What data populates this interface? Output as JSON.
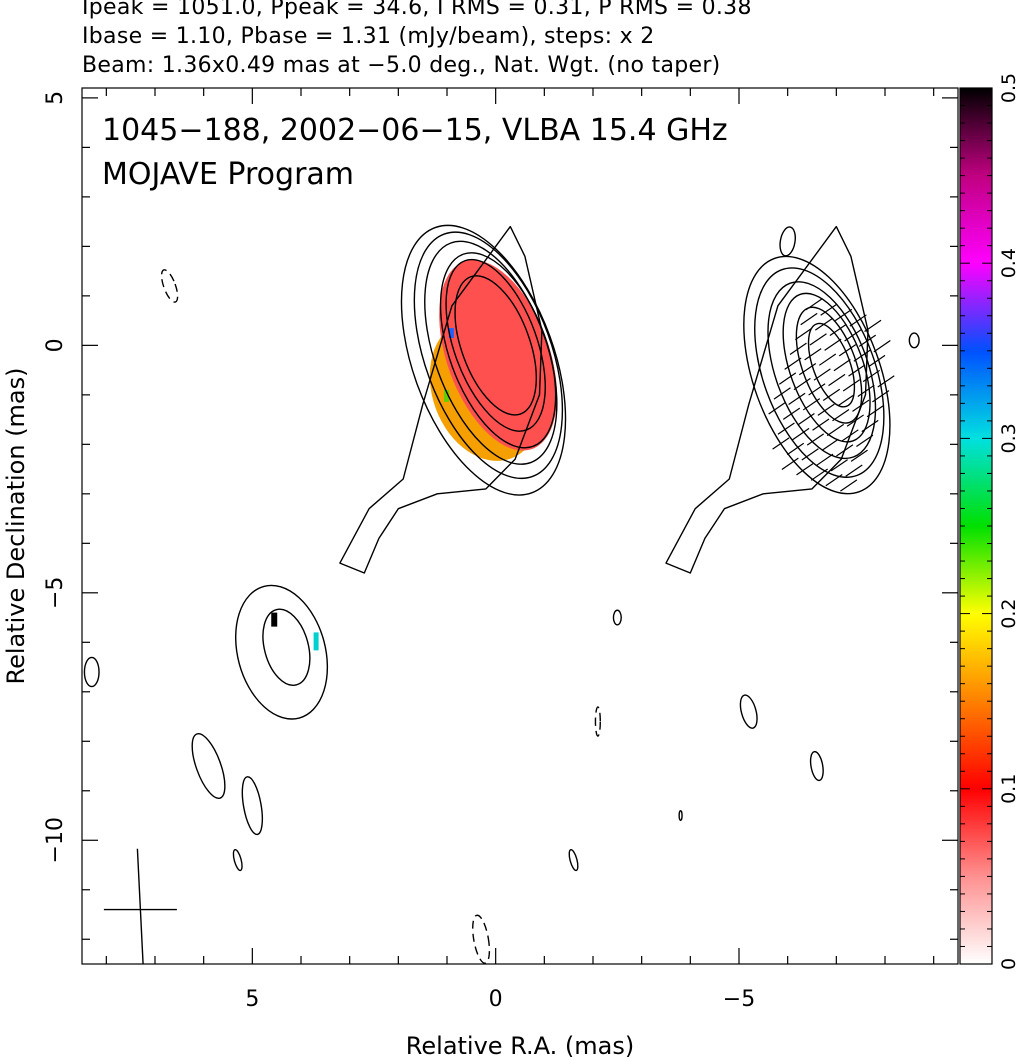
{
  "header": {
    "line1": "Ipeak = 1051.0, Ppeak = 34.6, I RMS = 0.31, P RMS = 0.38",
    "line2": "Ibase = 1.10, Pbase = 1.31 (mJy/beam), steps: x 2",
    "line3": "Beam: 1.36x0.49 mas at −5.0 deg., Nat. Wgt. (no taper)"
  },
  "chart_data": {
    "type": "heatmap",
    "title_line1": "1045−188, 2002−06−15, VLBA 15.4 GHz",
    "title_line2": "MOJAVE Program",
    "xlabel": "Relative R.A. (mas)",
    "ylabel": "Relative Declination (mas)",
    "xlim": [
      8.5,
      -9.5
    ],
    "ylim": [
      -12.5,
      5.2
    ],
    "x_ticks": [
      {
        "value": 5,
        "label": "5"
      },
      {
        "value": 0,
        "label": "0"
      },
      {
        "value": -5,
        "label": "−5"
      }
    ],
    "y_ticks": [
      {
        "value": 5,
        "label": "5"
      },
      {
        "value": 0,
        "label": "0"
      },
      {
        "value": -5,
        "label": "−5"
      },
      {
        "value": -10,
        "label": "−10"
      }
    ],
    "colorbar": {
      "range": [
        0,
        0.5
      ],
      "ticks": [
        {
          "value": 0,
          "label": "0"
        },
        {
          "value": 0.1,
          "label": "0.1"
        },
        {
          "value": 0.2,
          "label": "0.2"
        },
        {
          "value": 0.3,
          "label": "0.3"
        },
        {
          "value": 0.4,
          "label": "0.4"
        },
        {
          "value": 0.5,
          "label": "0.5"
        }
      ],
      "colors": [
        "#ffffff",
        "#ff9090",
        "#ff0000",
        "#ff8000",
        "#ffff00",
        "#00e000",
        "#00e0e0",
        "#0050ff",
        "#ff00ff",
        "#c00080",
        "#000000"
      ]
    },
    "colors": {
      "fractional_pol_fill": "#ff5050",
      "low_pol_fill": "#f5a000",
      "contour": "#000000"
    },
    "beam": {
      "major_mas": 1.36,
      "minor_mas": 0.49,
      "pa_deg": -5.0
    },
    "contours_left": [
      {
        "cx": 0.0,
        "cy": 0.0,
        "rx": 0.7,
        "ry": 1.5,
        "angle": -20
      },
      {
        "cx": 0.0,
        "cy": 0.0,
        "rx": 0.85,
        "ry": 1.85,
        "angle": -20
      },
      {
        "cx": -0.05,
        "cy": -0.1,
        "rx": 1.0,
        "ry": 2.1,
        "angle": -20
      },
      {
        "cx": 0.1,
        "cy": -0.15,
        "rx": 1.15,
        "ry": 2.4,
        "angle": -20
      },
      {
        "cx": 0.15,
        "cy": -0.2,
        "rx": 1.3,
        "ry": 2.65,
        "angle": -20
      },
      {
        "cx": 0.25,
        "cy": -0.3,
        "rx": 1.45,
        "ry": 2.9,
        "angle": -20
      },
      {
        "cx": 4.3,
        "cy": -6.1,
        "rx": 0.45,
        "ry": 0.8,
        "angle": -15
      },
      {
        "cx": 4.4,
        "cy": -6.2,
        "rx": 0.9,
        "ry": 1.4,
        "angle": -15
      },
      {
        "cx": 5.9,
        "cy": -8.5,
        "rx": 0.25,
        "ry": 0.7,
        "angle": -20
      },
      {
        "cx": 5.0,
        "cy": -9.3,
        "rx": 0.18,
        "ry": 0.6,
        "angle": -10
      },
      {
        "cx": 5.3,
        "cy": -10.4,
        "rx": 0.07,
        "ry": 0.22,
        "angle": -15
      },
      {
        "cx": 8.3,
        "cy": -6.6,
        "rx": 0.15,
        "ry": 0.3,
        "angle": 0
      }
    ],
    "contours_right": [
      {
        "cx": -6.9,
        "cy": -0.4,
        "rx": 0.38,
        "ry": 0.9,
        "angle": -20
      },
      {
        "cx": -6.85,
        "cy": -0.4,
        "rx": 0.55,
        "ry": 1.25,
        "angle": -20
      },
      {
        "cx": -6.8,
        "cy": -0.45,
        "rx": 0.75,
        "ry": 1.6,
        "angle": -20
      },
      {
        "cx": -6.7,
        "cy": -0.5,
        "rx": 0.95,
        "ry": 1.9,
        "angle": -20
      },
      {
        "cx": -6.65,
        "cy": -0.55,
        "rx": 1.15,
        "ry": 2.25,
        "angle": -20
      },
      {
        "cx": -6.6,
        "cy": -0.6,
        "rx": 1.3,
        "ry": 2.55,
        "angle": -20
      },
      {
        "cx": -5.2,
        "cy": -7.4,
        "rx": 0.15,
        "ry": 0.35,
        "angle": -15
      },
      {
        "cx": -6.6,
        "cy": -8.5,
        "rx": 0.12,
        "ry": 0.3,
        "angle": -10
      },
      {
        "cx": -6.0,
        "cy": 2.1,
        "rx": 0.15,
        "ry": 0.3,
        "angle": 10
      },
      {
        "cx": -8.6,
        "cy": 0.1,
        "rx": 0.1,
        "ry": 0.15,
        "angle": 0
      },
      {
        "cx": -3.8,
        "cy": -9.5,
        "rx": 0.03,
        "ry": 0.1,
        "angle": 0
      },
      {
        "cx": -1.6,
        "cy": -10.4,
        "rx": 0.07,
        "ry": 0.22,
        "angle": -15
      },
      {
        "cx": -2.5,
        "cy": -5.5,
        "rx": 0.08,
        "ry": 0.15,
        "angle": 0
      }
    ],
    "dashed_contours": [
      {
        "cx": 6.7,
        "cy": 1.2,
        "rx": 0.12,
        "ry": 0.35,
        "angle": -20
      },
      {
        "cx": 0.3,
        "cy": -12.0,
        "rx": 0.15,
        "ry": 0.5,
        "angle": -10
      },
      {
        "cx": -2.1,
        "cy": -7.6,
        "rx": 0.05,
        "ry": 0.3,
        "angle": 0
      }
    ]
  }
}
